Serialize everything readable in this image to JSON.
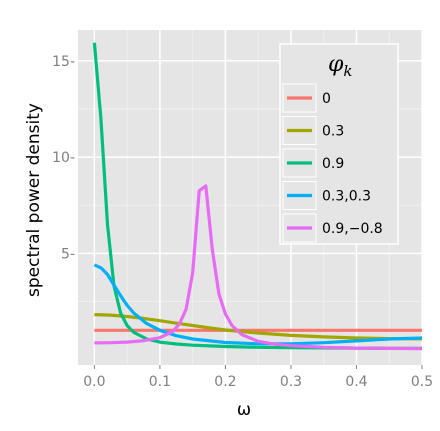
{
  "chart_data": {
    "type": "line",
    "xlabel": "ω",
    "ylabel": "spectral power density",
    "xlim": [
      -0.025,
      0.5
    ],
    "ylim": [
      -0.8,
      16.6
    ],
    "x_ticks": [
      0.0,
      0.1,
      0.2,
      0.3,
      0.4,
      0.5
    ],
    "x_tick_labels": [
      "0.0",
      "0.1",
      "0.2",
      "0.3",
      "0.4",
      "0.5"
    ],
    "y_ticks": [
      5,
      10,
      15
    ],
    "y_tick_labels": [
      "5-",
      "10-",
      "15-"
    ],
    "grid": true,
    "legend": {
      "title": "φ",
      "title_subscript": "k",
      "placement": "right"
    },
    "series": [
      {
        "name": "0",
        "color": "#F8766D",
        "x": [
          0.0,
          0.1,
          0.2,
          0.3,
          0.4,
          0.5
        ],
        "y": [
          1.0,
          1.0,
          1.0,
          1.0,
          1.0,
          1.0
        ]
      },
      {
        "name": "0.3",
        "color": "#A3A500",
        "x": [
          0.0,
          0.025,
          0.05,
          0.075,
          0.1,
          0.125,
          0.15,
          0.175,
          0.2,
          0.25,
          0.3,
          0.35,
          0.4,
          0.45,
          0.5
        ],
        "y": [
          1.82,
          1.79,
          1.72,
          1.62,
          1.5,
          1.37,
          1.25,
          1.13,
          1.02,
          0.86,
          0.74,
          0.66,
          0.6,
          0.57,
          0.56
        ]
      },
      {
        "name": "0.9",
        "color": "#00BF7D",
        "x": [
          0.0,
          0.01,
          0.02,
          0.03,
          0.04,
          0.05,
          0.06,
          0.08,
          0.1,
          0.125,
          0.15,
          0.2,
          0.25,
          0.3,
          0.35,
          0.4,
          0.45,
          0.5
        ],
        "y": [
          15.94,
          12.0,
          6.5,
          3.3,
          1.9,
          1.25,
          0.9,
          0.55,
          0.39,
          0.29,
          0.23,
          0.16,
          0.12,
          0.1,
          0.09,
          0.08,
          0.07,
          0.07
        ]
      },
      {
        "name": "0.3,0.3",
        "color": "#00B0F6",
        "x": [
          0.0,
          0.01,
          0.02,
          0.03,
          0.04,
          0.05,
          0.06,
          0.08,
          0.1,
          0.125,
          0.15,
          0.2,
          0.25,
          0.3,
          0.35,
          0.4,
          0.45,
          0.5
        ],
        "y": [
          4.4,
          4.25,
          3.9,
          3.35,
          2.8,
          2.3,
          1.9,
          1.35,
          1.0,
          0.72,
          0.55,
          0.37,
          0.3,
          0.3,
          0.36,
          0.45,
          0.55,
          0.6
        ]
      },
      {
        "name": "0.9,−0.8",
        "color": "#E76BF3",
        "x": [
          0.0,
          0.025,
          0.05,
          0.075,
          0.1,
          0.12,
          0.13,
          0.14,
          0.15,
          0.16,
          0.17,
          0.18,
          0.19,
          0.2,
          0.21,
          0.225,
          0.25,
          0.275,
          0.3,
          0.35,
          0.4,
          0.45,
          0.5
        ],
        "y": [
          0.35,
          0.36,
          0.39,
          0.46,
          0.62,
          0.95,
          1.35,
          2.1,
          4.0,
          8.25,
          8.5,
          5.2,
          2.9,
          1.85,
          1.25,
          0.78,
          0.43,
          0.28,
          0.2,
          0.12,
          0.08,
          0.06,
          0.05
        ]
      }
    ]
  }
}
